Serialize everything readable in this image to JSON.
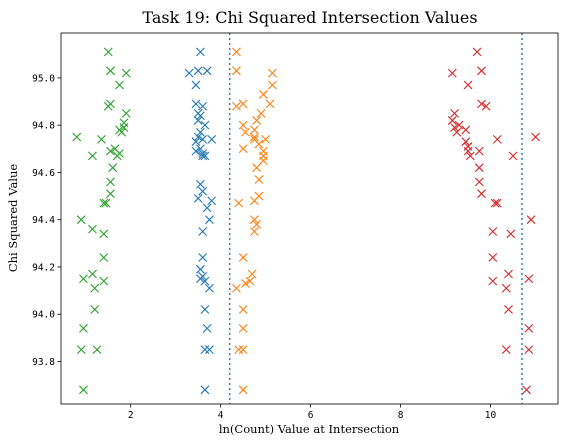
{
  "chart_data": {
    "type": "scatter",
    "title": "Task 19: Chi Squared Intersection Values",
    "xlabel": "ln(Count) Value at Intersection",
    "ylabel": "Chi Squared Value",
    "xlim": [
      0.45,
      11.5
    ],
    "ylim": [
      93.62,
      95.19
    ],
    "xticks": [
      2,
      4,
      6,
      8,
      10
    ],
    "yticks": [
      93.8,
      94.0,
      94.2,
      94.4,
      94.6,
      94.8,
      95.0
    ],
    "xtick_labels": [
      "2",
      "4",
      "6",
      "8",
      "10"
    ],
    "ytick_labels": [
      "93.8",
      "94.0",
      "94.2",
      "94.4",
      "94.6",
      "94.8",
      "95.0"
    ],
    "grid": false,
    "marker": "x",
    "vlines": [
      {
        "x": 4.2,
        "color": "#1f77b4",
        "style": "dotted"
      },
      {
        "x": 10.7,
        "color": "#1f77b4",
        "style": "dotted"
      }
    ],
    "series": [
      {
        "color": "#1f77b4",
        "points": [
          [
            3.55,
            95.11
          ],
          [
            3.5,
            95.03
          ],
          [
            3.7,
            95.03
          ],
          [
            3.3,
            95.02
          ],
          [
            3.45,
            94.97
          ],
          [
            3.45,
            94.89
          ],
          [
            3.6,
            94.88
          ],
          [
            3.5,
            94.85
          ],
          [
            3.55,
            94.84
          ],
          [
            3.5,
            94.82
          ],
          [
            3.65,
            94.8
          ],
          [
            3.55,
            94.77
          ],
          [
            3.5,
            94.75
          ],
          [
            3.6,
            94.74
          ],
          [
            3.8,
            94.74
          ],
          [
            3.45,
            94.73
          ],
          [
            3.55,
            94.7
          ],
          [
            3.45,
            94.69
          ],
          [
            3.6,
            94.68
          ],
          [
            3.6,
            94.67
          ],
          [
            3.65,
            94.67
          ],
          [
            3.55,
            94.55
          ],
          [
            3.6,
            94.52
          ],
          [
            3.5,
            94.49
          ],
          [
            3.8,
            94.48
          ],
          [
            3.7,
            94.45
          ],
          [
            3.75,
            94.4
          ],
          [
            3.6,
            94.35
          ],
          [
            3.6,
            94.24
          ],
          [
            3.55,
            94.19
          ],
          [
            3.6,
            94.16
          ],
          [
            3.55,
            94.15
          ],
          [
            3.65,
            94.14
          ],
          [
            3.75,
            94.11
          ],
          [
            3.65,
            94.02
          ],
          [
            3.7,
            93.94
          ],
          [
            3.65,
            93.85
          ],
          [
            3.75,
            93.85
          ],
          [
            3.65,
            93.68
          ]
        ]
      },
      {
        "color": "#ff7f0e",
        "points": [
          [
            4.35,
            95.11
          ],
          [
            4.35,
            95.03
          ],
          [
            5.15,
            95.02
          ],
          [
            5.15,
            94.97
          ],
          [
            4.95,
            94.93
          ],
          [
            4.5,
            94.89
          ],
          [
            5.1,
            94.89
          ],
          [
            4.35,
            94.88
          ],
          [
            4.9,
            94.85
          ],
          [
            4.8,
            94.82
          ],
          [
            4.5,
            94.8
          ],
          [
            4.75,
            94.78
          ],
          [
            4.55,
            94.77
          ],
          [
            4.75,
            94.75
          ],
          [
            4.75,
            94.74
          ],
          [
            5.0,
            94.74
          ],
          [
            4.85,
            94.72
          ],
          [
            4.5,
            94.7
          ],
          [
            4.95,
            94.69
          ],
          [
            4.95,
            94.67
          ],
          [
            4.95,
            94.65
          ],
          [
            4.8,
            94.62
          ],
          [
            4.85,
            94.57
          ],
          [
            4.85,
            94.5
          ],
          [
            4.75,
            94.48
          ],
          [
            4.4,
            94.47
          ],
          [
            4.75,
            94.4
          ],
          [
            4.8,
            94.38
          ],
          [
            4.75,
            94.35
          ],
          [
            4.5,
            94.24
          ],
          [
            4.7,
            94.17
          ],
          [
            4.65,
            94.14
          ],
          [
            4.55,
            94.13
          ],
          [
            4.35,
            94.11
          ],
          [
            4.5,
            94.02
          ],
          [
            4.5,
            93.94
          ],
          [
            4.4,
            93.85
          ],
          [
            4.5,
            93.85
          ],
          [
            4.5,
            93.68
          ]
        ]
      },
      {
        "color": "#2ca02c",
        "points": [
          [
            1.5,
            95.11
          ],
          [
            1.55,
            95.03
          ],
          [
            1.9,
            95.02
          ],
          [
            1.75,
            94.97
          ],
          [
            1.55,
            94.89
          ],
          [
            1.5,
            94.88
          ],
          [
            1.9,
            94.85
          ],
          [
            1.85,
            94.81
          ],
          [
            1.85,
            94.79
          ],
          [
            1.75,
            94.78
          ],
          [
            1.8,
            94.77
          ],
          [
            0.8,
            94.75
          ],
          [
            1.35,
            94.74
          ],
          [
            1.65,
            94.7
          ],
          [
            1.55,
            94.69
          ],
          [
            1.75,
            94.68
          ],
          [
            1.7,
            94.67
          ],
          [
            1.15,
            94.67
          ],
          [
            1.6,
            94.62
          ],
          [
            1.55,
            94.56
          ],
          [
            1.55,
            94.51
          ],
          [
            1.4,
            94.47
          ],
          [
            1.45,
            94.47
          ],
          [
            0.9,
            94.4
          ],
          [
            1.15,
            94.36
          ],
          [
            1.4,
            94.34
          ],
          [
            1.4,
            94.24
          ],
          [
            1.15,
            94.17
          ],
          [
            0.95,
            94.15
          ],
          [
            1.4,
            94.14
          ],
          [
            1.2,
            94.11
          ],
          [
            1.2,
            94.02
          ],
          [
            0.95,
            93.94
          ],
          [
            0.9,
            93.85
          ],
          [
            1.25,
            93.85
          ],
          [
            0.95,
            93.68
          ]
        ]
      },
      {
        "color": "#d62728",
        "points": [
          [
            9.7,
            95.11
          ],
          [
            9.8,
            95.03
          ],
          [
            9.15,
            95.02
          ],
          [
            9.5,
            94.97
          ],
          [
            9.8,
            94.89
          ],
          [
            9.9,
            94.88
          ],
          [
            9.2,
            94.85
          ],
          [
            9.15,
            94.82
          ],
          [
            9.3,
            94.8
          ],
          [
            9.2,
            94.79
          ],
          [
            9.45,
            94.78
          ],
          [
            9.25,
            94.77
          ],
          [
            11.0,
            94.75
          ],
          [
            10.15,
            94.74
          ],
          [
            9.45,
            94.73
          ],
          [
            9.5,
            94.71
          ],
          [
            9.5,
            94.69
          ],
          [
            9.75,
            94.69
          ],
          [
            9.55,
            94.67
          ],
          [
            10.5,
            94.67
          ],
          [
            9.75,
            94.62
          ],
          [
            9.75,
            94.56
          ],
          [
            9.8,
            94.51
          ],
          [
            10.1,
            94.47
          ],
          [
            10.15,
            94.47
          ],
          [
            10.9,
            94.4
          ],
          [
            10.05,
            94.35
          ],
          [
            10.45,
            94.34
          ],
          [
            10.05,
            94.24
          ],
          [
            10.4,
            94.17
          ],
          [
            10.85,
            94.15
          ],
          [
            10.05,
            94.14
          ],
          [
            10.35,
            94.11
          ],
          [
            10.4,
            94.02
          ],
          [
            10.85,
            93.94
          ],
          [
            10.35,
            93.85
          ],
          [
            10.85,
            93.85
          ],
          [
            10.8,
            93.68
          ]
        ]
      }
    ]
  }
}
